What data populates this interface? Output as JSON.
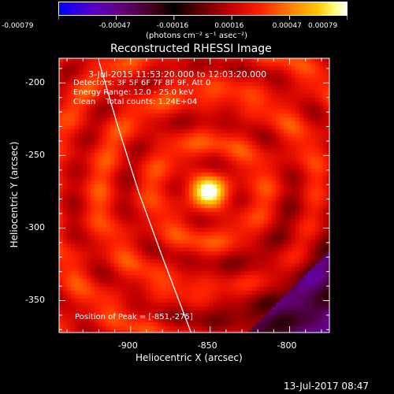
{
  "colorbar": {
    "tick_labels": [
      "-0.00079",
      "-0.00047",
      "-0.00016",
      "0.00016",
      "0.00047",
      "0.00079"
    ],
    "unit_label": "(photons cm⁻² s⁻¹ asec⁻²)",
    "range": [
      -0.00079,
      0.00079
    ]
  },
  "chart_data": {
    "type": "heatmap",
    "title": "Reconstructed RHESSI Image",
    "xlabel": "Heliocentric X (arcsec)",
    "ylabel": "Heliocentric Y (arcsec)",
    "xlim": [
      -945,
      -775
    ],
    "ylim": [
      -372,
      -183
    ],
    "x_ticks": [
      -900,
      -850,
      -800
    ],
    "y_ticks": [
      -200,
      -250,
      -300,
      -350
    ],
    "x_tick_labels": [
      "-900",
      "-850",
      "-800"
    ],
    "y_tick_labels": [
      "-200",
      "-250",
      "-300",
      "-350"
    ],
    "peak_position": [
      -851,
      -275
    ],
    "limb_points": [
      [
        -920,
        -185
      ],
      [
        -908,
        -230
      ],
      [
        -895,
        -275
      ],
      [
        -880,
        -320
      ],
      [
        -862,
        -372
      ]
    ],
    "annotations": {
      "time_range": "3-Jul-2015 11:53:20.000 to 12:03:20.000",
      "detectors": "Detectors: 3F 5F 6F 7F 8F 9F, Att 0",
      "energy": "Energy Range: 12.0 - 25.0 keV",
      "clean_total": "Clean    Total counts: 1.24E+04",
      "peak_text": "Position of Peak = [-851,-275]"
    }
  },
  "footer": {
    "timestamp": "13-Jul-2017 08:47"
  },
  "colors": {
    "background": "#000000",
    "foreground": "#ffffff"
  }
}
